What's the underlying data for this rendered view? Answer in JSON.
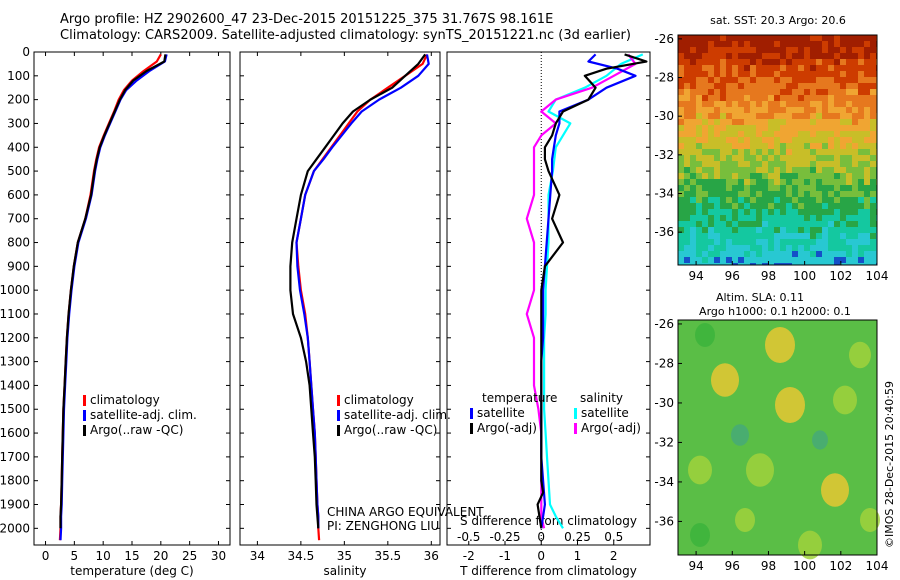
{
  "header": {
    "line1": "Argo profile: HZ 2902600_47 23-Dec-2015 20151225_375 31.767S 98.161E",
    "line2": "Climatology: CARS2009. Satellite-adjusted climatology: synTS_20151221.nc (3d earlier)"
  },
  "colors": {
    "climatology": "#ff0000",
    "satellite": "#0000ff",
    "argo": "#000000",
    "sal_satellite": "#00ffff",
    "sal_argo": "#ff00ff"
  },
  "chart_data": [
    {
      "type": "line",
      "xlabel": "temperature (deg C)",
      "xticks": [
        0,
        5,
        10,
        15,
        20,
        25,
        30
      ],
      "xlim": [
        -2,
        32
      ],
      "yticks": [
        0,
        100,
        200,
        300,
        400,
        500,
        600,
        700,
        800,
        900,
        1000,
        1100,
        1200,
        1300,
        1400,
        1500,
        1600,
        1700,
        1800,
        1900,
        2000
      ],
      "ylim": [
        0,
        2070
      ],
      "legend": [
        "climatology",
        "satellite-adj. clim.",
        "Argo(..raw -QC)"
      ],
      "series": [
        {
          "name": "climatology",
          "x": [
            20.0,
            19.3,
            17.0,
            15.0,
            13.6,
            12.7,
            11.9,
            11.0,
            10.1,
            9.3,
            8.8,
            8.4,
            7.8,
            6.9,
            5.6,
            4.9,
            4.4,
            4.0,
            3.7,
            3.5,
            3.3,
            3.1,
            3.0,
            2.9,
            2.8,
            2.7,
            2.6,
            2.6,
            2.5
          ],
          "y": [
            10,
            40,
            80,
            120,
            160,
            200,
            250,
            300,
            350,
            400,
            450,
            500,
            600,
            700,
            800,
            900,
            1000,
            1100,
            1200,
            1300,
            1400,
            1500,
            1600,
            1700,
            1800,
            1900,
            1950,
            2000,
            2050
          ]
        },
        {
          "name": "satellite-adj. clim.",
          "x": [
            21.0,
            20.7,
            18.0,
            15.8,
            14.0,
            13.0,
            12.1,
            11.2,
            10.3,
            9.5,
            9.0,
            8.6,
            8.0,
            7.0,
            5.7,
            5.0,
            4.5,
            4.1,
            3.8,
            3.6,
            3.4,
            3.2,
            3.1,
            3.0,
            2.9,
            2.8,
            2.7,
            2.7,
            2.6
          ],
          "y": [
            10,
            40,
            80,
            120,
            160,
            200,
            250,
            300,
            350,
            400,
            450,
            500,
            600,
            700,
            800,
            900,
            1000,
            1100,
            1200,
            1300,
            1400,
            1500,
            1600,
            1700,
            1800,
            1900,
            1950,
            2000,
            2050
          ]
        },
        {
          "name": "Argo(..raw -QC)",
          "x": [
            20.8,
            20.6,
            17.5,
            15.2,
            13.8,
            12.9,
            12.0,
            11.1,
            10.2,
            9.4,
            8.9,
            8.5,
            7.9,
            6.9,
            5.6,
            4.9,
            4.4,
            4.0,
            3.7,
            3.5,
            3.3,
            3.1,
            3.0,
            2.9,
            2.8,
            2.7,
            2.6,
            2.6
          ],
          "y": [
            10,
            40,
            80,
            120,
            160,
            200,
            250,
            300,
            350,
            400,
            450,
            500,
            600,
            700,
            800,
            900,
            1000,
            1100,
            1200,
            1300,
            1400,
            1500,
            1600,
            1700,
            1800,
            1900,
            1950,
            2000
          ]
        }
      ]
    },
    {
      "type": "line",
      "xlabel": "salinity",
      "xticks": [
        34,
        34.5,
        35,
        35.5,
        36
      ],
      "xlim": [
        33.8,
        36.1
      ],
      "ylim": [
        0,
        2070
      ],
      "legend": [
        "climatology",
        "satellite-adj. clim.",
        "Argo(..raw -QC)"
      ],
      "annotations": [
        "CHINA ARGO EQUIVALENT",
        "PI: ZENGHONG LIU"
      ],
      "series": [
        {
          "name": "climatology",
          "x": [
            35.95,
            35.9,
            35.7,
            35.5,
            35.3,
            35.15,
            35.05,
            34.95,
            34.85,
            34.75,
            34.65,
            34.55,
            34.5,
            34.45,
            34.47,
            34.5,
            34.55,
            34.58,
            34.6,
            34.62,
            34.64,
            34.66,
            34.67,
            34.68,
            34.69,
            34.7,
            34.7,
            34.71
          ],
          "y": [
            10,
            50,
            100,
            150,
            200,
            250,
            300,
            350,
            400,
            450,
            500,
            600,
            700,
            800,
            900,
            1000,
            1100,
            1200,
            1300,
            1400,
            1500,
            1600,
            1700,
            1800,
            1900,
            1950,
            2000,
            2050
          ]
        },
        {
          "name": "satellite-adj. clim.",
          "x": [
            35.95,
            35.97,
            35.85,
            35.65,
            35.4,
            35.2,
            35.08,
            34.97,
            34.86,
            34.76,
            34.65,
            34.55,
            34.5,
            34.45,
            34.46,
            34.49,
            34.54,
            34.58,
            34.6,
            34.62,
            34.64,
            34.66,
            34.67,
            34.68,
            34.69,
            34.7,
            34.7
          ],
          "y": [
            10,
            50,
            100,
            150,
            200,
            250,
            300,
            350,
            400,
            450,
            500,
            600,
            700,
            800,
            900,
            1000,
            1100,
            1200,
            1300,
            1400,
            1500,
            1600,
            1700,
            1800,
            1900,
            1950,
            2000
          ]
        },
        {
          "name": "Argo(..raw -QC)",
          "x": [
            35.93,
            35.85,
            35.7,
            35.55,
            35.3,
            35.1,
            34.98,
            34.88,
            34.78,
            34.68,
            34.58,
            34.5,
            34.45,
            34.4,
            34.38,
            34.38,
            34.41,
            34.5,
            34.56,
            34.6,
            34.62,
            34.64,
            34.66,
            34.67,
            34.68,
            34.69,
            34.7
          ],
          "y": [
            10,
            50,
            100,
            150,
            200,
            250,
            300,
            350,
            400,
            450,
            500,
            600,
            700,
            800,
            900,
            1000,
            1100,
            1200,
            1300,
            1400,
            1500,
            1600,
            1700,
            1800,
            1900,
            1950,
            2000
          ]
        }
      ]
    },
    {
      "type": "line",
      "xlabel": "T difference from climatology",
      "xlabel_top": "S difference from climatology",
      "xticks": [
        -2,
        -1,
        0,
        1,
        2
      ],
      "xticks_top": [
        "-0.5",
        "-0.25",
        "0",
        "0.25",
        "0.5"
      ],
      "xlim": [
        -2.6,
        3.0
      ],
      "ylim": [
        0,
        2070
      ],
      "legend_temperature": {
        "title": "temperature",
        "items": [
          "satellite",
          "Argo(-adj)"
        ]
      },
      "legend_salinity": {
        "title": "salinity",
        "items": [
          "satellite",
          "Argo(-adj)"
        ]
      },
      "series": [
        {
          "name": "satellite",
          "group": "temperature",
          "x": [
            1.5,
            1.3,
            2.1,
            2.6,
            1.8,
            1.3,
            0.5,
            0.5,
            0.4,
            0.35,
            0.3,
            0.3,
            0.25,
            0.2,
            0.15,
            0.1,
            0.05,
            0.05,
            0.05,
            0.0,
            0.0,
            0.0,
            0.0,
            0.0,
            0.05,
            0.1,
            0.0
          ],
          "y": [
            10,
            40,
            70,
            100,
            150,
            200,
            250,
            300,
            350,
            400,
            450,
            500,
            600,
            700,
            800,
            900,
            1000,
            1100,
            1200,
            1300,
            1400,
            1500,
            1600,
            1700,
            1800,
            1900,
            2000
          ]
        },
        {
          "name": "Argo(-adj)",
          "group": "temperature",
          "x": [
            2.3,
            2.9,
            1.8,
            1.2,
            1.5,
            1.3,
            0.6,
            0.4,
            0.3,
            0.1,
            0.1,
            0.2,
            0.5,
            0.3,
            0.6,
            0.1,
            0.0,
            0.0,
            0.0,
            0.0,
            0.0,
            0.0,
            0.0,
            0.0,
            0.0,
            0.05,
            -0.1,
            0.0
          ],
          "y": [
            10,
            40,
            70,
            100,
            150,
            200,
            250,
            300,
            350,
            400,
            450,
            500,
            600,
            700,
            800,
            900,
            1000,
            1100,
            1200,
            1300,
            1400,
            1500,
            1600,
            1700,
            1800,
            1850,
            1900,
            2000
          ]
        },
        {
          "name": "satellite",
          "group": "salinity",
          "x": [
            0.7,
            0.55,
            0.45,
            0.3,
            0.1,
            0.05,
            0.2,
            0.15,
            0.1,
            0.08,
            0.05,
            0.05,
            0.05,
            0.04,
            0.03,
            0.03,
            0.02,
            0.02,
            0.02,
            0.02,
            0.03,
            0.04,
            0.05,
            0.06,
            0.1,
            0.15
          ],
          "y": [
            10,
            50,
            100,
            150,
            200,
            250,
            300,
            350,
            400,
            500,
            600,
            700,
            800,
            900,
            1000,
            1100,
            1200,
            1300,
            1400,
            1500,
            1600,
            1700,
            1800,
            1900,
            1950,
            2000
          ]
        },
        {
          "name": "Argo(-adj)",
          "group": "salinity",
          "x": [
            0.6,
            0.65,
            0.5,
            0.35,
            0.1,
            0.0,
            0.1,
            0.0,
            -0.05,
            -0.05,
            -0.05,
            -0.1,
            -0.05,
            -0.05,
            -0.05,
            -0.1,
            -0.05,
            -0.05,
            -0.05,
            -0.02,
            0.0,
            0.0,
            0.0,
            0.0,
            0.0,
            0.02
          ],
          "y": [
            10,
            50,
            100,
            150,
            200,
            250,
            300,
            350,
            400,
            500,
            600,
            700,
            800,
            900,
            1000,
            1100,
            1200,
            1300,
            1400,
            1500,
            1600,
            1700,
            1800,
            1900,
            1950,
            2000
          ]
        }
      ]
    },
    {
      "type": "heatmap",
      "title": "sat. SST: 20.3 Argo: 20.6",
      "xticks": [
        94,
        96,
        98,
        100,
        102,
        104
      ],
      "yticks": [
        -26,
        -28,
        -30,
        -32,
        -34,
        -36
      ],
      "xlim": [
        93,
        104
      ],
      "ylim": [
        -37.7,
        -25.8
      ],
      "colors": [
        "#a01e00",
        "#cd3c00",
        "#e6781e",
        "#f0a532",
        "#c8be28",
        "#78be3c",
        "#28a546",
        "#14c8a0",
        "#28c8d2",
        "#1450c8"
      ]
    },
    {
      "type": "heatmap",
      "title": "Altim. SLA: 0.11",
      "subtitle": "Argo h1000: 0.1 h2000: 0.1",
      "xticks": [
        94,
        96,
        98,
        100,
        102,
        104
      ],
      "yticks": [
        -26,
        -28,
        -30,
        -32,
        -34,
        -36
      ],
      "xlim": [
        93,
        104
      ],
      "ylim": [
        -37.7,
        -25.8
      ],
      "colors": [
        "#3cb43c",
        "#5abe46",
        "#a0d23c",
        "#e6c832",
        "#46aa78"
      ]
    }
  ],
  "timestamp": "©IMOS 28-Dec-2015 20:40:59"
}
